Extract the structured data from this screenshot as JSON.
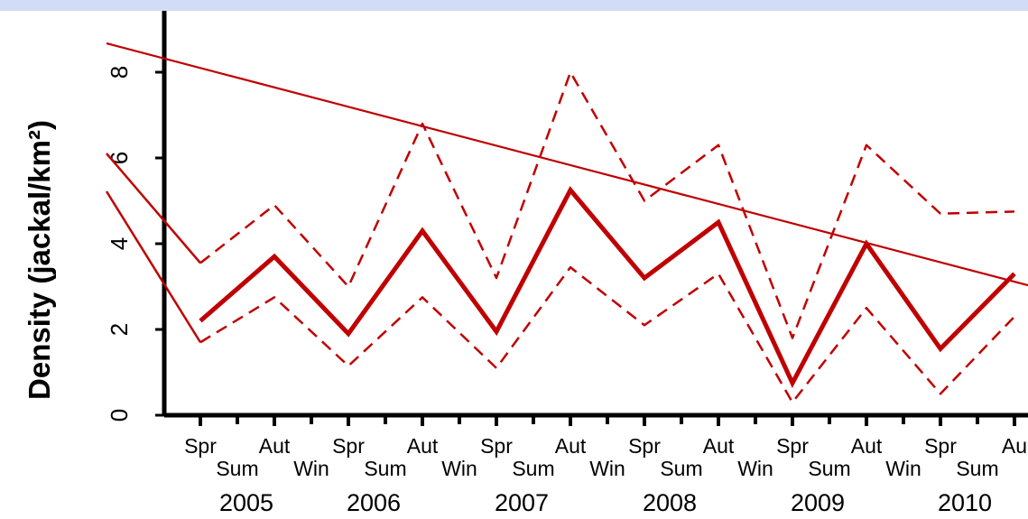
{
  "chart_data": {
    "type": "line",
    "ylabel": "Density (jackal/km²)",
    "ylim": [
      0,
      9
    ],
    "yticks": [
      "0",
      "2",
      "4",
      "6",
      "8"
    ],
    "x_season_labels": [
      "Spr",
      "Aut",
      "Spr",
      "Aut",
      "Spr",
      "Aut",
      "Spr",
      "Aut",
      "Spr",
      "Aut",
      "Spr",
      "Au"
    ],
    "x_period_labels": [
      "Sum",
      "Win",
      "Sum",
      "Win",
      "Sum",
      "Win",
      "Sum",
      "Win",
      "Sum",
      "Win",
      "Sum"
    ],
    "x_year_labels": [
      "2005",
      "2006",
      "2007",
      "2008",
      "2009",
      "2010"
    ],
    "series": [
      {
        "role": "estimate",
        "values": [
          2.2,
          3.7,
          1.9,
          4.3,
          1.95,
          5.25,
          3.2,
          4.5,
          0.75,
          4.0,
          1.55,
          3.3
        ]
      },
      {
        "role": "upper",
        "values": [
          3.55,
          4.9,
          3.0,
          6.8,
          3.2,
          8.0,
          5.0,
          6.3,
          1.8,
          6.3,
          4.7,
          4.75
        ]
      },
      {
        "role": "lower",
        "values": [
          1.7,
          2.75,
          1.15,
          2.75,
          1.1,
          3.45,
          2.1,
          3.3,
          0.3,
          2.5,
          0.5,
          2.3
        ]
      }
    ],
    "trend": {
      "start": 8.2,
      "end": 3.0
    },
    "colors": {
      "series": "#c00000",
      "axis": "#000000",
      "band": "#d2dcf7"
    }
  }
}
